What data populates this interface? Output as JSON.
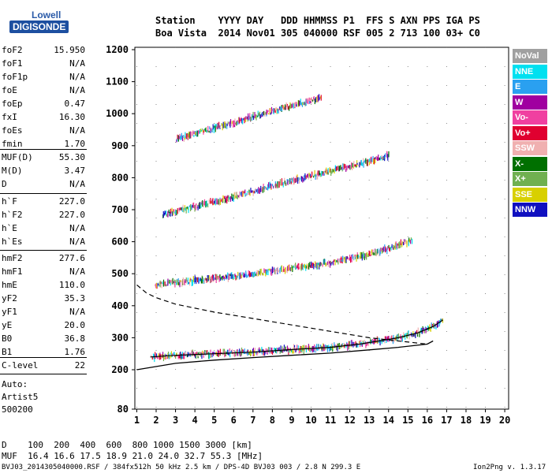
{
  "logo": {
    "line1": "Lowell",
    "line2": "DIGISONDE"
  },
  "header": {
    "row1": "Station    YYYY DAY   DDD HHMMSS P1  FFS S AXN PPS IGA PS",
    "row2": "Boa Vista  2014 Nov01 305 040000 RSF 005 2 713 100 03+ C0"
  },
  "params_group1": [
    {
      "name": "foF2",
      "value": "15.950"
    },
    {
      "name": "foF1",
      "value": "N/A"
    },
    {
      "name": "foF1p",
      "value": "N/A"
    },
    {
      "name": "foE",
      "value": "N/A"
    },
    {
      "name": "foEp",
      "value": "0.47"
    },
    {
      "name": "fxI",
      "value": "16.30"
    },
    {
      "name": "foEs",
      "value": "N/A"
    },
    {
      "name": "fmin",
      "value": "1.70"
    }
  ],
  "params_group2": [
    {
      "name": "MUF(D)",
      "value": "55.30"
    },
    {
      "name": "M(D)",
      "value": "3.47"
    },
    {
      "name": "D",
      "value": "N/A"
    }
  ],
  "params_group3": [
    {
      "name": "h`F",
      "value": "227.0"
    },
    {
      "name": "h`F2",
      "value": "227.0"
    },
    {
      "name": "h`E",
      "value": "N/A"
    },
    {
      "name": "h`Es",
      "value": "N/A"
    }
  ],
  "params_group4": [
    {
      "name": "hmF2",
      "value": "277.6"
    },
    {
      "name": "hmF1",
      "value": "N/A"
    },
    {
      "name": "hmE",
      "value": "110.0"
    },
    {
      "name": "yF2",
      "value": "35.3"
    },
    {
      "name": "yF1",
      "value": "N/A"
    },
    {
      "name": "yE",
      "value": "20.0"
    },
    {
      "name": "B0",
      "value": "36.8"
    },
    {
      "name": "B1",
      "value": "1.76"
    }
  ],
  "params_group5": [
    {
      "name": "C-level",
      "value": "22"
    }
  ],
  "side_notes": [
    "Auto:",
    "Artist5",
    "500200"
  ],
  "legend": [
    {
      "label": "NoVal",
      "color": "#a0a0a0"
    },
    {
      "label": "NNE",
      "color": "#00e0f0"
    },
    {
      "label": "E",
      "color": "#2aa0f0"
    },
    {
      "label": "W",
      "color": "#a000a0"
    },
    {
      "label": "Vo-",
      "color": "#f040a0"
    },
    {
      "label": "Vo+",
      "color": "#e00030"
    },
    {
      "label": "SSW",
      "color": "#f0b0b0"
    },
    {
      "label": "X-",
      "color": "#007000"
    },
    {
      "label": "X+",
      "color": "#70b050"
    },
    {
      "label": "SSE",
      "color": "#d8d000"
    },
    {
      "label": "NNW",
      "color": "#1010c0"
    }
  ],
  "bottom": {
    "d_row": "D    100  200  400  600  800 1000 1500 3000 [km]",
    "muf_row": "MUF  16.4 16.6 17.5 18.9 21.0 24.0 32.7 55.3 [MHz]"
  },
  "footer": {
    "left": "BVJ03_2014305040000.RSF / 384fx512h 50 kHz 2.5 km / DPS-4D BVJ03 003 / 2.8 N 299.3 E",
    "right": "Ion2Png v. 1.3.17"
  },
  "chart_data": {
    "type": "scatter",
    "x_ticks": [
      1,
      2,
      3,
      4,
      5,
      6,
      7,
      8,
      9,
      10,
      11,
      12,
      13,
      14,
      15,
      16,
      17,
      18,
      19,
      20
    ],
    "y_ticks": [
      80,
      200,
      300,
      400,
      500,
      600,
      700,
      800,
      900,
      1000,
      1100,
      1200
    ],
    "xlim": [
      0.9,
      20.2
    ],
    "ylim": [
      80,
      1200
    ],
    "traces": [
      {
        "name": "F2 1st hop",
        "points": [
          [
            1.7,
            240
          ],
          [
            3,
            245
          ],
          [
            5,
            250
          ],
          [
            7,
            255
          ],
          [
            9,
            263
          ],
          [
            11,
            270
          ],
          [
            12.5,
            280
          ],
          [
            13.5,
            290
          ],
          [
            14.5,
            300
          ],
          [
            15.5,
            315
          ],
          [
            16.3,
            335
          ],
          [
            16.8,
            355
          ]
        ]
      },
      {
        "name": "F2 2nd hop",
        "points": [
          [
            1.9,
            465
          ],
          [
            3,
            472
          ],
          [
            5,
            485
          ],
          [
            7,
            500
          ],
          [
            9,
            517
          ],
          [
            11,
            535
          ],
          [
            13,
            560
          ],
          [
            14.5,
            590
          ],
          [
            15.2,
            605
          ]
        ]
      },
      {
        "name": "F2 3rd hop",
        "points": [
          [
            2.3,
            685
          ],
          [
            4,
            710
          ],
          [
            6,
            740
          ],
          [
            8,
            775
          ],
          [
            10,
            805
          ],
          [
            12,
            835
          ],
          [
            14,
            870
          ]
        ]
      },
      {
        "name": "F2 4th hop",
        "points": [
          [
            3.0,
            920
          ],
          [
            5,
            955
          ],
          [
            7,
            990
          ],
          [
            9,
            1025
          ],
          [
            10.5,
            1050
          ]
        ]
      }
    ],
    "profile_dashed": [
      [
        1,
        465
      ],
      [
        1.5,
        440
      ],
      [
        2,
        425
      ],
      [
        3,
        405
      ],
      [
        5,
        380
      ],
      [
        7,
        360
      ],
      [
        9,
        340
      ],
      [
        11,
        320
      ],
      [
        13,
        300
      ],
      [
        14.5,
        290
      ],
      [
        16,
        280
      ]
    ],
    "profile_solid": [
      [
        1,
        200
      ],
      [
        3,
        220
      ],
      [
        5,
        230
      ],
      [
        7,
        238
      ],
      [
        9,
        245
      ],
      [
        11,
        252
      ],
      [
        13,
        262
      ],
      [
        14.5,
        270
      ],
      [
        16,
        280
      ],
      [
        16.3,
        290
      ]
    ]
  }
}
